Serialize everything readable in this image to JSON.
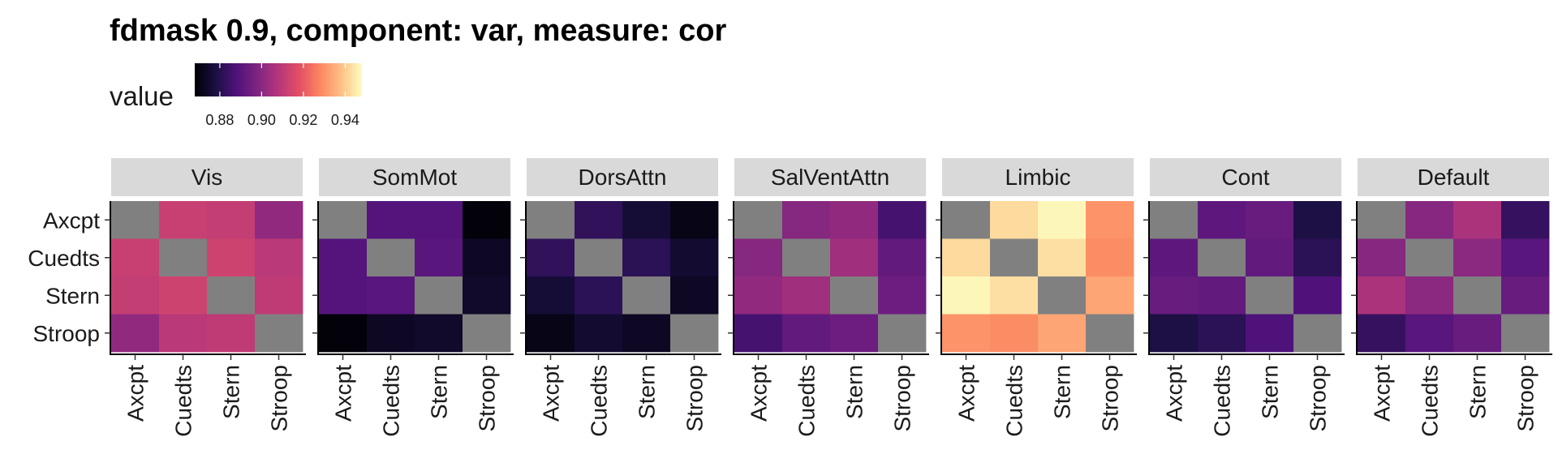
{
  "chart_data": {
    "type": "heatmap",
    "title": "fdmask 0.9, component: var, measure: cor",
    "legend": {
      "title": "value",
      "ticks": [
        0.88,
        0.9,
        0.92,
        0.94
      ],
      "tick_labels": [
        "0.88",
        "0.90",
        "0.92",
        "0.94"
      ],
      "range": [
        0.868,
        0.948
      ],
      "palette": "magma",
      "placement": "top-left"
    },
    "rows": [
      "Axcpt",
      "Cuedts",
      "Stern",
      "Stroop"
    ],
    "cols": [
      "Axcpt",
      "Cuedts",
      "Stern",
      "Stroop"
    ],
    "diagonal": "NA (grey)",
    "na_color": "#808080",
    "panels": [
      {
        "name": "Vis",
        "values": [
          [
            null,
            0.912,
            0.911,
            0.901
          ],
          [
            0.912,
            null,
            0.913,
            0.909
          ],
          [
            0.911,
            0.913,
            null,
            0.91
          ],
          [
            0.901,
            0.909,
            0.91,
            null
          ]
        ]
      },
      {
        "name": "SomMot",
        "values": [
          [
            null,
            0.889,
            0.889,
            0.869
          ],
          [
            0.889,
            null,
            0.89,
            0.873
          ],
          [
            0.889,
            0.89,
            null,
            0.874
          ],
          [
            0.869,
            0.873,
            0.874,
            null
          ]
        ]
      },
      {
        "name": "DorsAttn",
        "values": [
          [
            null,
            0.882,
            0.876,
            0.871
          ],
          [
            0.882,
            null,
            0.881,
            0.875
          ],
          [
            0.876,
            0.881,
            null,
            0.873
          ],
          [
            0.871,
            0.875,
            0.873,
            null
          ]
        ]
      },
      {
        "name": "SalVentAttn",
        "values": [
          [
            null,
            0.899,
            0.901,
            0.886
          ],
          [
            0.899,
            null,
            0.904,
            0.892
          ],
          [
            0.901,
            0.904,
            null,
            0.894
          ],
          [
            0.886,
            0.892,
            0.894,
            null
          ]
        ]
      },
      {
        "name": "Limbic",
        "values": [
          [
            null,
            0.942,
            0.947,
            0.93
          ],
          [
            0.942,
            null,
            0.943,
            0.929
          ],
          [
            0.947,
            0.943,
            null,
            0.933
          ],
          [
            0.93,
            0.929,
            0.933,
            null
          ]
        ]
      },
      {
        "name": "Cont",
        "values": [
          [
            null,
            0.891,
            0.893,
            0.878
          ],
          [
            0.891,
            null,
            0.892,
            0.881
          ],
          [
            0.893,
            0.892,
            null,
            0.888
          ],
          [
            0.878,
            0.881,
            0.888,
            null
          ]
        ]
      },
      {
        "name": "Default",
        "values": [
          [
            null,
            0.899,
            0.906,
            0.883
          ],
          [
            0.899,
            null,
            0.9,
            0.89
          ],
          [
            0.906,
            0.9,
            null,
            0.893
          ],
          [
            0.883,
            0.89,
            0.893,
            null
          ]
        ]
      }
    ]
  }
}
